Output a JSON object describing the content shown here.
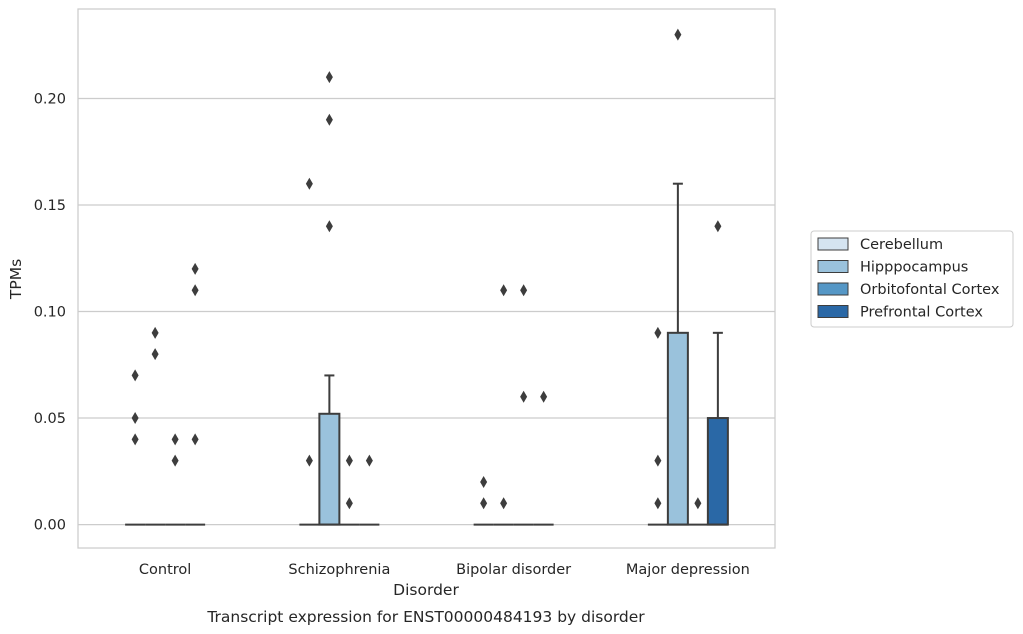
{
  "chart_data": {
    "type": "box",
    "title": "",
    "caption": "Transcript expression for ENST00000484193 by disorder",
    "xlabel": "Disorder",
    "ylabel": "TPMs",
    "ylim": [
      -0.011,
      0.242
    ],
    "yticks": [
      0.0,
      0.05,
      0.1,
      0.15,
      0.2
    ],
    "ytick_labels": [
      "0.00",
      "0.05",
      "0.10",
      "0.15",
      "0.20"
    ],
    "grid": "horizontal",
    "legend_position": "right",
    "categories": [
      "Control",
      "Schizophrenia",
      "Bipolar disorder",
      "Major depression"
    ],
    "series": [
      {
        "name": "Cerebellum",
        "color": "#d5e4f1",
        "boxes": [
          {
            "q1": 0,
            "median": 0,
            "q3": 0,
            "whisker_low": 0,
            "whisker_high": 0,
            "outliers": [
              0.07,
              0.05,
              0.04
            ]
          },
          {
            "q1": 0,
            "median": 0,
            "q3": 0,
            "whisker_low": 0,
            "whisker_high": 0,
            "outliers": [
              0.16,
              0.03
            ]
          },
          {
            "q1": 0,
            "median": 0,
            "q3": 0,
            "whisker_low": 0,
            "whisker_high": 0,
            "outliers": [
              0.02,
              0.01
            ]
          },
          {
            "q1": 0,
            "median": 0,
            "q3": 0,
            "whisker_low": 0,
            "whisker_high": 0,
            "outliers": [
              0.09,
              0.03,
              0.01
            ]
          }
        ]
      },
      {
        "name": "Hipppocampus",
        "color": "#9ac2dc",
        "boxes": [
          {
            "q1": 0,
            "median": 0,
            "q3": 0,
            "whisker_low": 0,
            "whisker_high": 0,
            "outliers": [
              0.09,
              0.08
            ]
          },
          {
            "q1": 0,
            "median": 0,
            "q3": 0.052,
            "whisker_low": 0,
            "whisker_high": 0.07,
            "outliers": [
              0.21,
              0.19,
              0.14
            ]
          },
          {
            "q1": 0,
            "median": 0,
            "q3": 0,
            "whisker_low": 0,
            "whisker_high": 0,
            "outliers": [
              0.11,
              0.01
            ]
          },
          {
            "q1": 0,
            "median": 0,
            "q3": 0.09,
            "whisker_low": 0,
            "whisker_high": 0.16,
            "outliers": [
              0.23
            ]
          }
        ]
      },
      {
        "name": "Orbitofontal Cortex",
        "color": "#5597c6",
        "boxes": [
          {
            "q1": 0,
            "median": 0,
            "q3": 0,
            "whisker_low": 0,
            "whisker_high": 0,
            "outliers": [
              0.04,
              0.03
            ]
          },
          {
            "q1": 0,
            "median": 0,
            "q3": 0,
            "whisker_low": 0,
            "whisker_high": 0,
            "outliers": [
              0.03,
              0.01
            ]
          },
          {
            "q1": 0,
            "median": 0,
            "q3": 0,
            "whisker_low": 0,
            "whisker_high": 0,
            "outliers": [
              0.11,
              0.06
            ]
          },
          {
            "q1": 0,
            "median": 0,
            "q3": 0,
            "whisker_low": 0,
            "whisker_high": 0,
            "outliers": [
              0.01
            ]
          }
        ]
      },
      {
        "name": "Prefrontal Cortex",
        "color": "#2a68a6",
        "boxes": [
          {
            "q1": 0,
            "median": 0,
            "q3": 0,
            "whisker_low": 0,
            "whisker_high": 0,
            "outliers": [
              0.12,
              0.11,
              0.04
            ]
          },
          {
            "q1": 0,
            "median": 0,
            "q3": 0,
            "whisker_low": 0,
            "whisker_high": 0,
            "outliers": [
              0.03
            ]
          },
          {
            "q1": 0,
            "median": 0,
            "q3": 0,
            "whisker_low": 0,
            "whisker_high": 0,
            "outliers": [
              0.06
            ]
          },
          {
            "q1": 0,
            "median": 0,
            "q3": 0.05,
            "whisker_low": 0,
            "whisker_high": 0.09,
            "outliers": [
              0.14
            ]
          }
        ]
      }
    ]
  }
}
